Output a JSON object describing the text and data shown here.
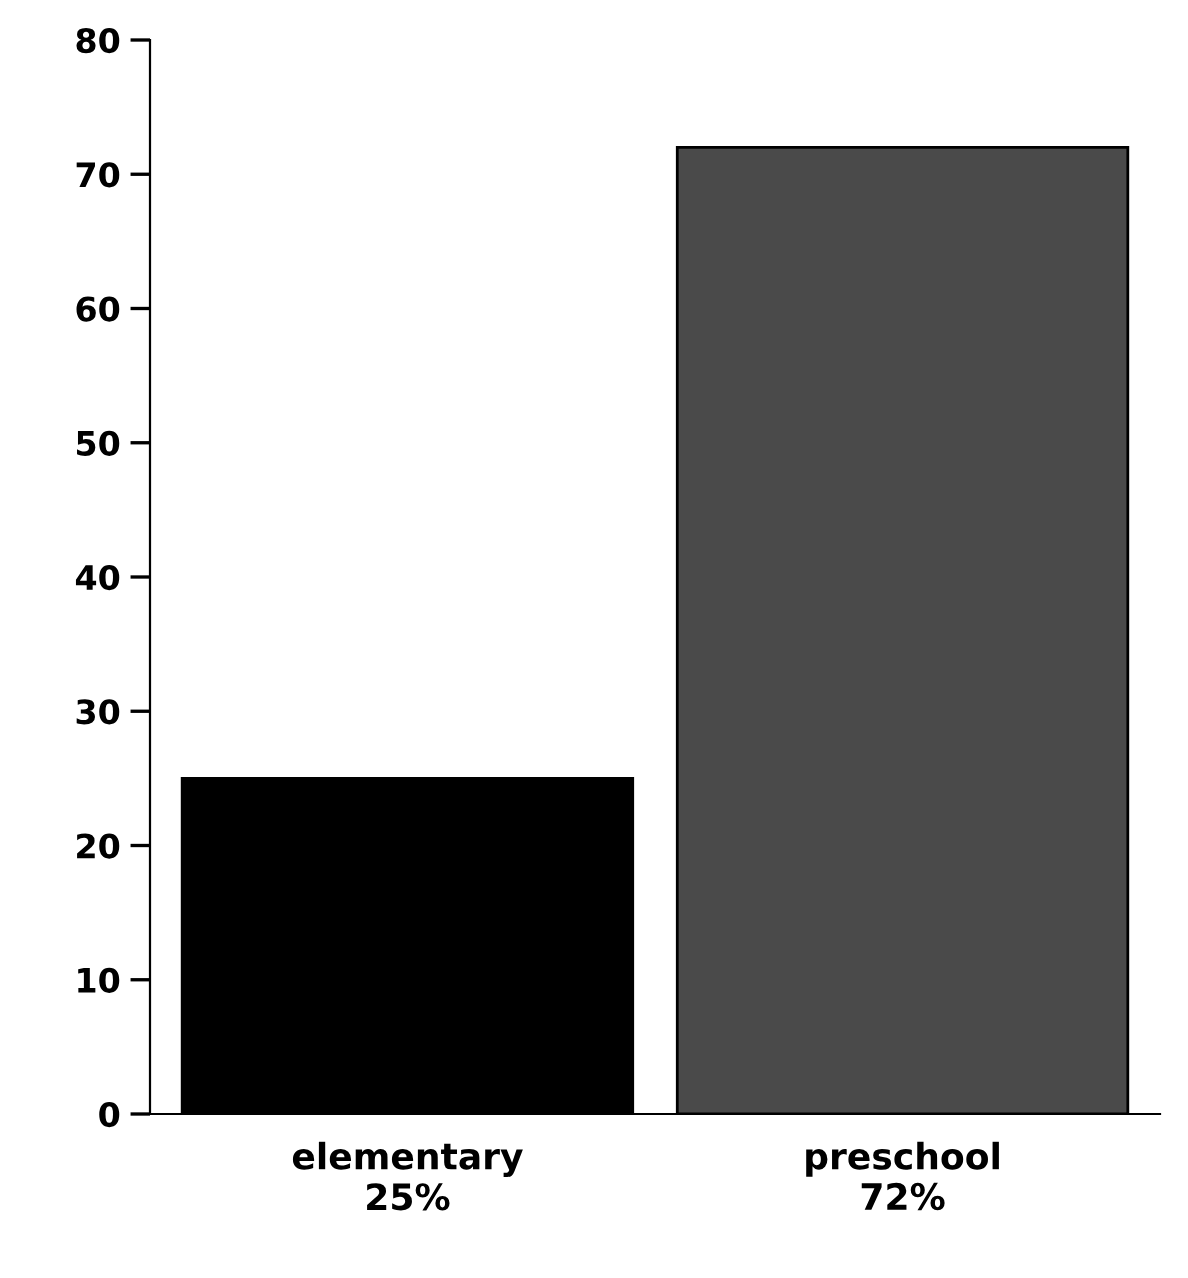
{
  "chart_data": {
    "type": "bar",
    "categories": [
      "elementary",
      "preschool"
    ],
    "values": [
      25,
      72
    ],
    "colors": [
      "#000000",
      "#4a4a4a"
    ],
    "value_labels": [
      "25%",
      "72%"
    ],
    "ylim": [
      0,
      80
    ],
    "yticks": [
      0,
      10,
      20,
      30,
      40,
      50,
      60,
      70,
      80
    ],
    "grid": false
  }
}
